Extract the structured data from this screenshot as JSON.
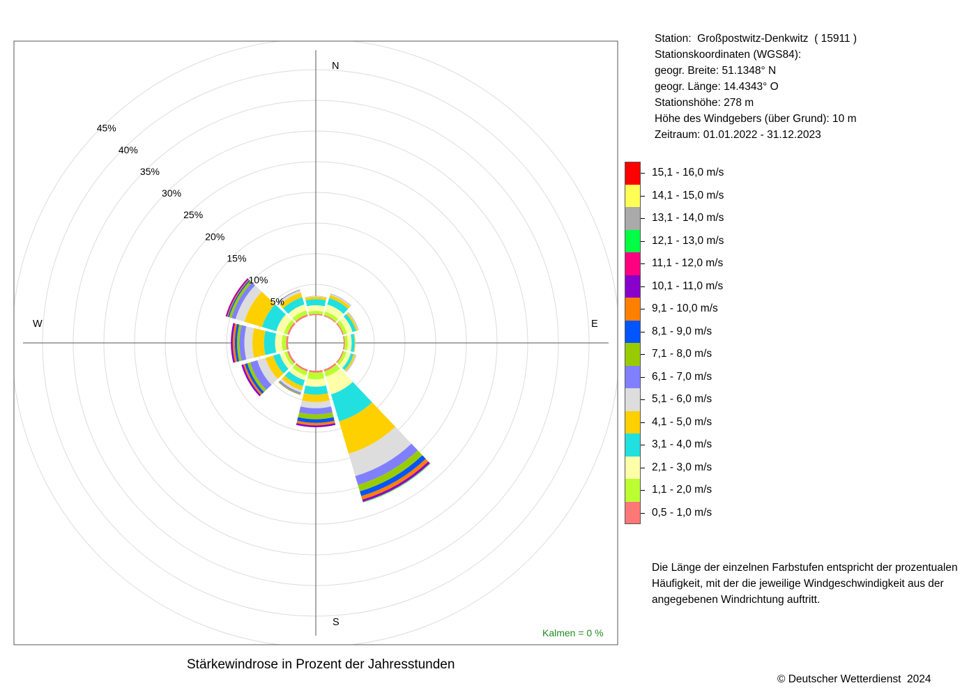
{
  "station": {
    "line1": "Station:  Großpostwitz-Denkwitz  ( 15911 )",
    "line2": "Stationskoordinaten (WGS84):",
    "line3": "geogr. Breite: 51.1348° N",
    "line4": "geogr. Länge: 14.4343° O",
    "line5": "Stationshöhe: 278 m",
    "line6": "Höhe des Windgebers (über Grund): 10 m",
    "line7": "Zeitraum: 01.01.2022 - 31.12.2023"
  },
  "caption": "Stärkewindrose in Prozent der Jahresstunden",
  "calm": "Kalmen  =  0 %",
  "copyright": "© Deutscher Wetterdienst  2024",
  "note": [
    "Die Länge der einzelnen Farbstufen entspricht der prozentualen",
    "Häufigkeit, mit der die jeweilige Windgeschwindigkeit aus der",
    "angegebenen Windrichtung auftritt."
  ],
  "compass": {
    "n": "N",
    "e": "E",
    "s": "S",
    "w": "W"
  },
  "legend": [
    {
      "label": "15,1 - 16,0 m/s",
      "color": "#ff0000"
    },
    {
      "label": "14,1 - 15,0 m/s",
      "color": "#ffff55"
    },
    {
      "label": "13,1 - 14,0 m/s",
      "color": "#aaaaaa"
    },
    {
      "label": "12,1 - 13,0 m/s",
      "color": "#00ff44"
    },
    {
      "label": "11,1 - 12,0 m/s",
      "color": "#ff0080"
    },
    {
      "label": "10,1 - 11,0 m/s",
      "color": "#8800cc"
    },
    {
      "label": "9,1 - 10,0 m/s",
      "color": "#ff8000"
    },
    {
      "label": "8,1 - 9,0 m/s",
      "color": "#0055ff"
    },
    {
      "label": "7,1 - 8,0 m/s",
      "color": "#99cc00"
    },
    {
      "label": "6,1 - 7,0 m/s",
      "color": "#8080ff"
    },
    {
      "label": "5,1 - 6,0 m/s",
      "color": "#dddddd"
    },
    {
      "label": "4,1 - 5,0 m/s",
      "color": "#ffd000"
    },
    {
      "label": "3,1 - 4,0 m/s",
      "color": "#22e0e0"
    },
    {
      "label": "2,1 - 3,0 m/s",
      "color": "#ffffaa"
    },
    {
      "label": "1,1 - 2,0 m/s",
      "color": "#bbff33"
    },
    {
      "label": "0,5 - 1,0 m/s",
      "color": "#ff7777"
    }
  ],
  "chart_data": {
    "type": "windrose",
    "rings": [
      5,
      10,
      15,
      20,
      25,
      30,
      35,
      40,
      45
    ],
    "ring_labels": [
      "5%",
      "10%",
      "15%",
      "20%",
      "25%",
      "30%",
      "35%",
      "40%",
      "45%"
    ],
    "speed_classes": [
      "0,5 - 1,0 m/s",
      "1,1 - 2,0 m/s",
      "2,1 - 3,0 m/s",
      "3,1 - 4,0 m/s",
      "4,1 - 5,0 m/s",
      "5,1 - 6,0 m/s",
      "6,1 - 7,0 m/s",
      "7,1 - 8,0 m/s",
      "8,1 - 9,0 m/s",
      "9,1 - 10,0 m/s",
      "10,1 - 11,0 m/s",
      "11,1 - 12,0 m/s",
      "12,1 - 13,0 m/s"
    ],
    "directions": [
      {
        "deg": 0,
        "values": [
          0.2,
          0.5,
          0.9,
          1.0,
          0.4,
          0.1,
          0.02,
          0.0,
          0.0,
          0.0,
          0.0,
          0.0,
          0.0
        ]
      },
      {
        "deg": 30,
        "values": [
          0.2,
          0.6,
          1.2,
          1.1,
          0.5,
          0.2,
          0.05,
          0.0,
          0.0,
          0.0,
          0.0,
          0.0,
          0.0
        ]
      },
      {
        "deg": 60,
        "values": [
          0.2,
          0.6,
          0.9,
          0.6,
          0.3,
          0.1,
          0.05,
          0.0,
          0.0,
          0.0,
          0.0,
          0.0,
          0.0
        ]
      },
      {
        "deg": 90,
        "values": [
          0.2,
          0.5,
          0.6,
          0.5,
          0.1,
          0.05,
          0.0,
          0.0,
          0.0,
          0.0,
          0.0,
          0.0,
          0.0
        ]
      },
      {
        "deg": 120,
        "values": [
          0.2,
          0.5,
          0.7,
          0.5,
          0.3,
          0.1,
          0.05,
          0.0,
          0.0,
          0.0,
          0.0,
          0.0,
          0.0
        ]
      },
      {
        "deg": 150,
        "values": [
          0.3,
          0.9,
          3.0,
          4.6,
          5.5,
          3.8,
          1.5,
          1.1,
          0.8,
          0.6,
          0.35,
          0.05,
          0.1
        ]
      },
      {
        "deg": 180,
        "values": [
          0.3,
          1.1,
          1.2,
          1.3,
          1.2,
          1.0,
          1.0,
          0.8,
          0.6,
          0.4,
          0.3,
          0.0,
          0.0
        ]
      },
      {
        "deg": 210,
        "values": [
          0.3,
          0.7,
          0.8,
          1.0,
          0.7,
          0.4,
          0.2,
          0.1,
          0.05,
          0.05,
          0.0,
          0.0,
          0.0
        ]
      },
      {
        "deg": 240,
        "values": [
          0.3,
          0.5,
          0.8,
          1.1,
          1.3,
          1.4,
          1.2,
          0.5,
          0.4,
          0.3,
          0.3,
          0.0,
          0.0
        ]
      },
      {
        "deg": 270,
        "values": [
          0.3,
          0.7,
          1.1,
          1.8,
          1.9,
          1.3,
          0.8,
          0.4,
          0.35,
          0.35,
          0.3,
          0.0,
          0.0
        ]
      },
      {
        "deg": 300,
        "values": [
          0.3,
          0.6,
          1.3,
          2.4,
          3.0,
          1.5,
          0.7,
          0.4,
          0.2,
          0.15,
          0.2,
          0.05,
          0.0
        ]
      },
      {
        "deg": 330,
        "values": [
          0.3,
          0.7,
          1.0,
          1.2,
          0.8,
          0.4,
          0.1,
          0.05,
          0.0,
          0.0,
          0.0,
          0.0,
          0.0
        ]
      }
    ]
  }
}
